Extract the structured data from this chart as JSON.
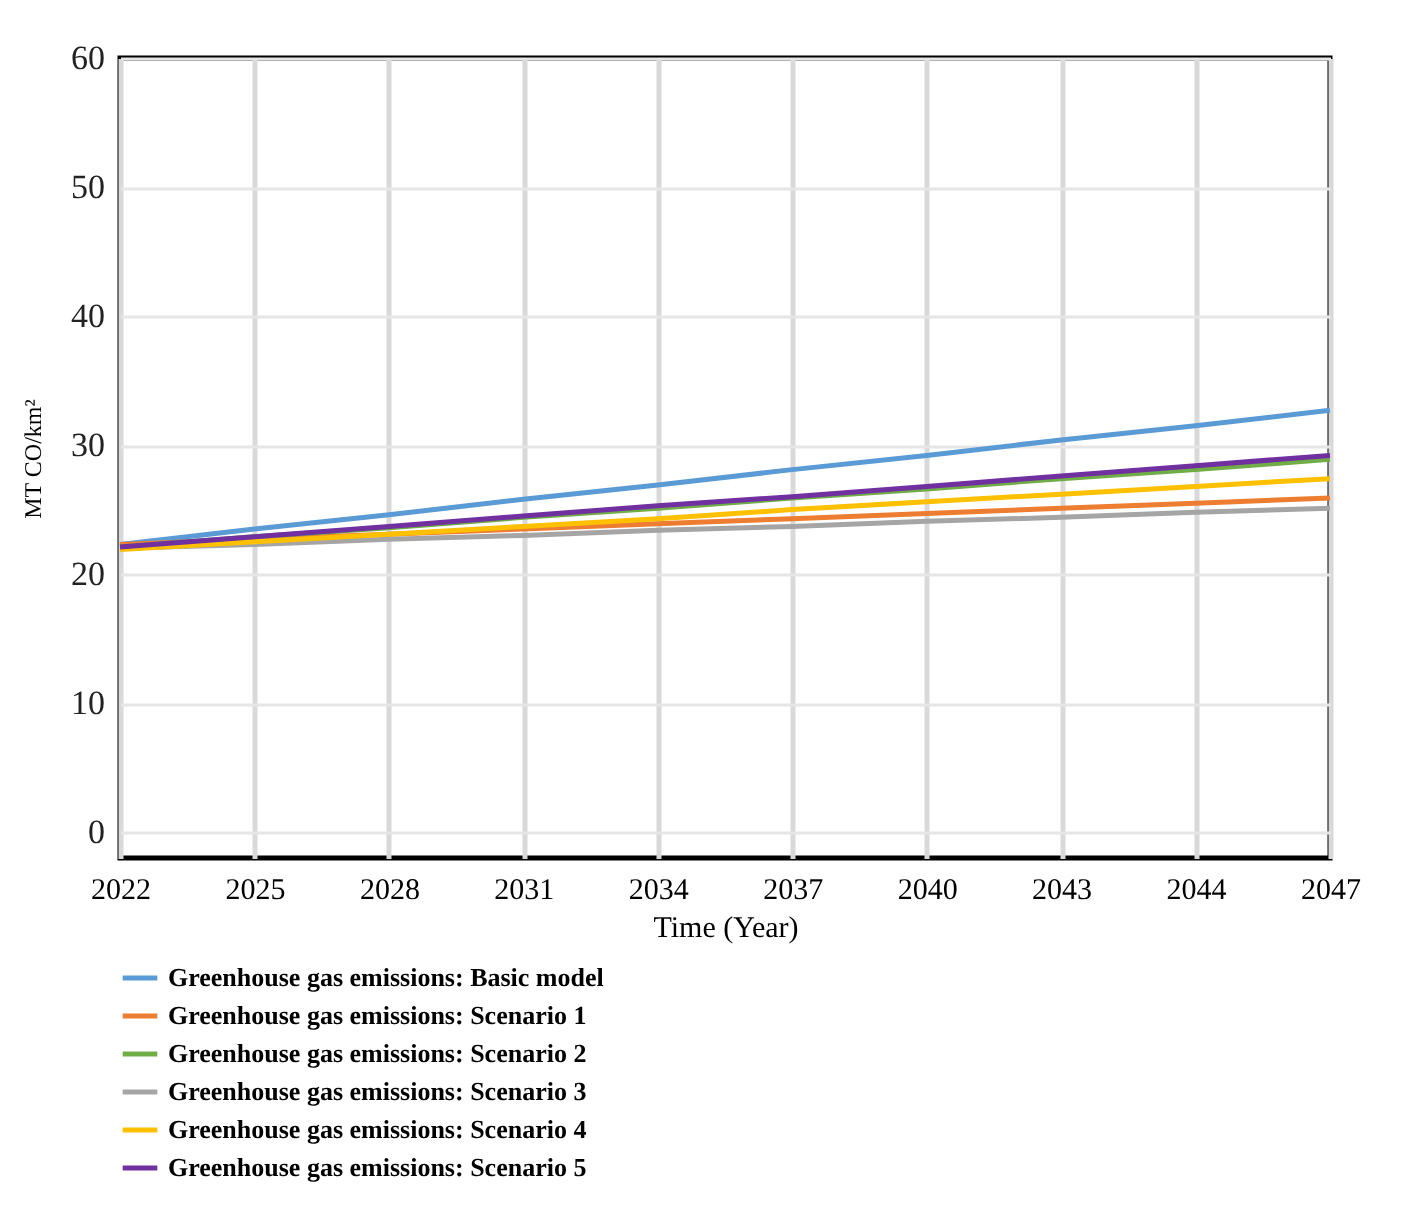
{
  "chart_data": {
    "type": "line",
    "xlabel": "Time (Year)",
    "ylabel": "MT CO/km²",
    "categories": [
      "2022",
      "2025",
      "2028",
      "2031",
      "2034",
      "2037",
      "2040",
      "2043",
      "2044",
      "2047"
    ],
    "ylim": [
      -2,
      60
    ],
    "yticks": [
      0,
      10,
      20,
      30,
      40,
      50,
      60
    ],
    "grid": true,
    "legend": "bottom",
    "marker": "none",
    "line_style": "solid",
    "series": [
      {
        "name": "Greenhouse gas emissions: Basic model",
        "color": "#5b9bd5",
        "values": [
          22.3,
          23.5,
          24.6,
          25.8,
          26.9,
          28.1,
          29.2,
          30.4,
          31.5,
          32.7
        ]
      },
      {
        "name": "Greenhouse gas emissions: Scenario 1",
        "color": "#ed7d31",
        "values": [
          22.3,
          22.7,
          23.1,
          23.5,
          23.9,
          24.3,
          24.7,
          25.1,
          25.5,
          25.9
        ]
      },
      {
        "name": "Greenhouse gas emissions: Scenario 2",
        "color": "#70ad47",
        "values": [
          22.1,
          22.9,
          23.6,
          24.4,
          25.1,
          25.9,
          26.6,
          27.4,
          28.1,
          28.9
        ]
      },
      {
        "name": "Greenhouse gas emissions: Scenario 3",
        "color": "#a5a5a5",
        "values": [
          22.0,
          22.3,
          22.7,
          23.0,
          23.4,
          23.7,
          24.1,
          24.4,
          24.8,
          25.1
        ]
      },
      {
        "name": "Greenhouse gas emissions: Scenario 4",
        "color": "#ffc000",
        "values": [
          21.9,
          22.5,
          23.1,
          23.7,
          24.3,
          25.0,
          25.6,
          26.2,
          26.8,
          27.4
        ]
      },
      {
        "name": "Greenhouse gas emissions: Scenario 5",
        "color": "#7030a0",
        "values": [
          22.1,
          22.9,
          23.7,
          24.5,
          25.3,
          26.0,
          26.8,
          27.6,
          28.4,
          29.2
        ]
      }
    ]
  }
}
